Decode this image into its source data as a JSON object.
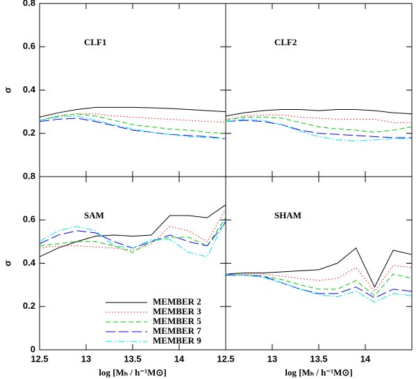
{
  "chart_data": [
    {
      "type": "line",
      "label": "CLF1",
      "x": [
        12.5,
        12.7,
        12.9,
        13.1,
        13.3,
        13.5,
        13.7,
        13.9,
        14.1,
        14.3,
        14.5
      ],
      "xlim": [
        12.5,
        14.5
      ],
      "xticks": [
        12.5,
        13,
        13.5,
        14
      ],
      "ylabel": "σ",
      "ylim": [
        0,
        0.8
      ],
      "yticks": [
        0.2,
        0.4,
        0.6,
        0.8
      ],
      "series": [
        {
          "color": "#000000",
          "linestyle": "solid",
          "values": [
            0.275,
            0.295,
            0.31,
            0.32,
            0.32,
            0.32,
            0.318,
            0.315,
            0.31,
            0.305,
            0.3
          ]
        },
        {
          "color": "#ff0000",
          "linestyle": "dotted",
          "values": [
            0.26,
            0.28,
            0.29,
            0.29,
            0.28,
            0.275,
            0.27,
            0.265,
            0.26,
            0.255,
            0.25
          ]
        },
        {
          "color": "#00cc00",
          "linestyle": "dashed",
          "values": [
            0.26,
            0.28,
            0.29,
            0.28,
            0.26,
            0.24,
            0.23,
            0.22,
            0.215,
            0.205,
            0.2
          ]
        },
        {
          "color": "#0000ff",
          "linestyle": "longdash",
          "values": [
            0.255,
            0.265,
            0.27,
            0.255,
            0.235,
            0.215,
            0.205,
            0.195,
            0.19,
            0.185,
            0.175
          ]
        },
        {
          "color": "#00e5ff",
          "linestyle": "dashdot",
          "values": [
            0.26,
            0.275,
            0.28,
            0.26,
            0.24,
            0.22,
            0.205,
            0.195,
            0.185,
            0.18,
            0.175
          ]
        }
      ]
    },
    {
      "type": "line",
      "label": "CLF2",
      "x": [
        12.5,
        12.7,
        12.9,
        13.1,
        13.3,
        13.5,
        13.7,
        13.9,
        14.1,
        14.3,
        14.5
      ],
      "xlim": [
        12.5,
        14.5
      ],
      "xticks": [
        12.5,
        13,
        13.5,
        14
      ],
      "ylim": [
        0,
        0.8
      ],
      "yticks": [
        0.2,
        0.4,
        0.6,
        0.8
      ],
      "series": [
        {
          "color": "#000000",
          "linestyle": "solid",
          "values": [
            0.28,
            0.295,
            0.305,
            0.31,
            0.31,
            0.305,
            0.31,
            0.31,
            0.305,
            0.295,
            0.29
          ]
        },
        {
          "color": "#ff0000",
          "linestyle": "dotted",
          "values": [
            0.265,
            0.28,
            0.285,
            0.285,
            0.275,
            0.27,
            0.265,
            0.265,
            0.265,
            0.25,
            0.25
          ]
        },
        {
          "color": "#00cc00",
          "linestyle": "dashed",
          "values": [
            0.26,
            0.275,
            0.275,
            0.27,
            0.25,
            0.23,
            0.22,
            0.215,
            0.205,
            0.215,
            0.23
          ]
        },
        {
          "color": "#0000ff",
          "linestyle": "longdash",
          "values": [
            0.255,
            0.26,
            0.255,
            0.24,
            0.215,
            0.2,
            0.195,
            0.19,
            0.185,
            0.18,
            0.18
          ]
        },
        {
          "color": "#00e5ff",
          "linestyle": "dashdot",
          "values": [
            0.255,
            0.265,
            0.26,
            0.24,
            0.21,
            0.185,
            0.17,
            0.165,
            0.17,
            0.175,
            0.175
          ]
        }
      ]
    },
    {
      "type": "line",
      "label": "SAM",
      "x": [
        12.5,
        12.7,
        12.9,
        13.1,
        13.3,
        13.5,
        13.7,
        13.9,
        14.1,
        14.3,
        14.5
      ],
      "xlabel": "log [Mₕ / h⁻¹M⊙]",
      "xlim": [
        12.5,
        14.5
      ],
      "xticks": [
        12.5,
        13,
        13.5,
        14
      ],
      "ylabel": "σ",
      "ylim": [
        0,
        0.8
      ],
      "yticks": [
        0,
        0.2,
        0.4,
        0.6,
        0.8
      ],
      "legend": "lower right",
      "series": [
        {
          "name": "MEMBER 2",
          "color": "#000000",
          "linestyle": "solid",
          "values": [
            0.43,
            0.47,
            0.5,
            0.525,
            0.53,
            0.525,
            0.53,
            0.62,
            0.62,
            0.61,
            0.67
          ]
        },
        {
          "name": "MEMBER 3",
          "color": "#ff0000",
          "linestyle": "dotted",
          "values": [
            0.47,
            0.48,
            0.48,
            0.475,
            0.47,
            0.46,
            0.49,
            0.57,
            0.55,
            0.5,
            0.65
          ]
        },
        {
          "name": "MEMBER 5",
          "color": "#00cc00",
          "linestyle": "dashed",
          "values": [
            0.48,
            0.49,
            0.5,
            0.5,
            0.48,
            0.45,
            0.5,
            0.52,
            0.52,
            0.48,
            0.61
          ]
        },
        {
          "name": "MEMBER 7",
          "color": "#0000ff",
          "linestyle": "longdash",
          "values": [
            0.49,
            0.53,
            0.55,
            0.54,
            0.5,
            0.47,
            0.5,
            0.53,
            0.5,
            0.48,
            0.59
          ]
        },
        {
          "name": "MEMBER 9",
          "color": "#00e5ff",
          "linestyle": "dashdot",
          "values": [
            0.5,
            0.55,
            0.57,
            0.55,
            0.48,
            0.47,
            0.51,
            0.51,
            0.45,
            0.43,
            0.6
          ]
        }
      ]
    },
    {
      "type": "line",
      "label": "SHAM",
      "x": [
        12.5,
        12.7,
        12.9,
        13.1,
        13.3,
        13.5,
        13.7,
        13.9,
        14.1,
        14.3,
        14.5
      ],
      "xlabel": "log [Mₕ / h⁻¹M⊙]",
      "xlim": [
        12.5,
        14.5
      ],
      "xticks": [
        12.5,
        13,
        13.5,
        14
      ],
      "ylim": [
        0,
        0.8
      ],
      "yticks": [
        0,
        0.2,
        0.4,
        0.6,
        0.8
      ],
      "series": [
        {
          "color": "#000000",
          "linestyle": "solid",
          "values": [
            0.35,
            0.355,
            0.355,
            0.36,
            0.365,
            0.37,
            0.4,
            0.47,
            0.29,
            0.46,
            0.44
          ]
        },
        {
          "color": "#ff0000",
          "linestyle": "dotted",
          "values": [
            0.345,
            0.35,
            0.35,
            0.34,
            0.33,
            0.32,
            0.33,
            0.38,
            0.27,
            0.39,
            0.38
          ]
        },
        {
          "color": "#00cc00",
          "linestyle": "dashed",
          "values": [
            0.345,
            0.345,
            0.34,
            0.325,
            0.3,
            0.28,
            0.28,
            0.32,
            0.25,
            0.35,
            0.33
          ]
        },
        {
          "color": "#0000ff",
          "linestyle": "longdash",
          "values": [
            0.345,
            0.345,
            0.34,
            0.31,
            0.28,
            0.26,
            0.26,
            0.29,
            0.24,
            0.28,
            0.27
          ]
        },
        {
          "color": "#00e5ff",
          "linestyle": "dashdot",
          "values": [
            0.35,
            0.345,
            0.335,
            0.31,
            0.28,
            0.255,
            0.245,
            0.27,
            0.22,
            0.26,
            0.25
          ]
        }
      ]
    }
  ]
}
